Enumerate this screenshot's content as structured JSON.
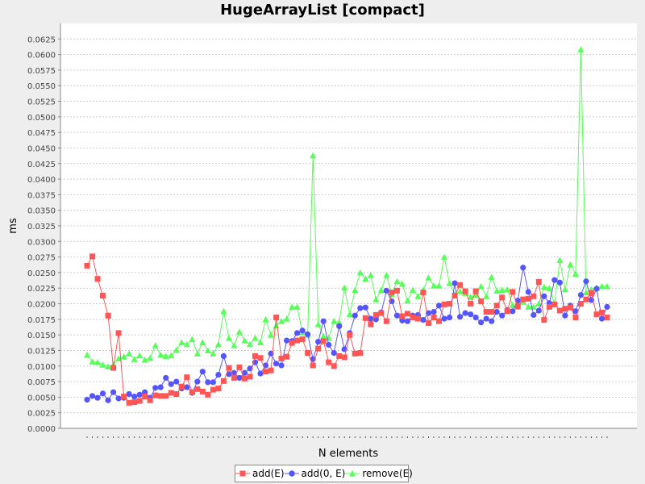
{
  "chart_data": {
    "type": "line",
    "title": "HugeArrayList [compact]",
    "xlabel": "N elements",
    "ylabel": "ms",
    "ylim": [
      0,
      0.065
    ],
    "yticks": [
      "0.0000",
      "0.0025",
      "0.0050",
      "0.0075",
      "0.0100",
      "0.0125",
      "0.0150",
      "0.0175",
      "0.0200",
      "0.0225",
      "0.0250",
      "0.0275",
      "0.0300",
      "0.0325",
      "0.0350",
      "0.0375",
      "0.0400",
      "0.0425",
      "0.0450",
      "0.0475",
      "0.0500",
      "0.0525",
      "0.0550",
      "0.0575",
      "0.0600",
      "0.0625"
    ],
    "grid": true,
    "legend_position": "bottom",
    "x_count": 100,
    "series": [
      {
        "name": "add(E)",
        "color": "#ff5555",
        "marker": "square",
        "values": [
          0.0261,
          0.0276,
          0.024,
          0.0213,
          0.0181,
          0.0097,
          0.0153,
          0.0051,
          0.0041,
          0.0042,
          0.0044,
          0.0051,
          0.0045,
          0.0053,
          0.0052,
          0.0052,
          0.0057,
          0.0055,
          0.0067,
          0.0082,
          0.0058,
          0.0063,
          0.0059,
          0.0054,
          0.0062,
          0.0064,
          0.0076,
          0.0097,
          0.0081,
          0.0098,
          0.008,
          0.0083,
          0.0116,
          0.0113,
          0.0091,
          0.0093,
          0.0178,
          0.0112,
          0.0115,
          0.0137,
          0.0141,
          0.0143,
          0.0121,
          0.0101,
          0.0128,
          0.014,
          0.0106,
          0.01,
          0.0116,
          0.0114,
          0.015,
          0.012,
          0.0121,
          0.0177,
          0.0167,
          0.0182,
          0.0185,
          0.0172,
          0.0218,
          0.0221,
          0.018,
          0.0184,
          0.0178,
          0.0176,
          0.0218,
          0.0169,
          0.0178,
          0.0172,
          0.0199,
          0.02,
          0.0213,
          0.023,
          0.022,
          0.02,
          0.022,
          0.0204,
          0.0187,
          0.0187,
          0.0197,
          0.021,
          0.0188,
          0.0219,
          0.0196,
          0.0207,
          0.0208,
          0.0212,
          0.0235,
          0.0174,
          0.0195,
          0.0199,
          0.0189,
          0.0192,
          0.0194,
          0.0178,
          0.02,
          0.0207,
          0.0217,
          0.0183,
          0.0186,
          0.0178
        ]
      },
      {
        "name": "add(0, E)",
        "color": "#5555ff",
        "marker": "circle",
        "values": [
          0.0046,
          0.0052,
          0.0049,
          0.0056,
          0.0045,
          0.0058,
          0.0048,
          0.0049,
          0.0055,
          0.0051,
          0.0054,
          0.0058,
          0.0049,
          0.0065,
          0.0066,
          0.0081,
          0.0071,
          0.0075,
          0.0064,
          0.0066,
          0.0057,
          0.0075,
          0.0091,
          0.0074,
          0.0074,
          0.0086,
          0.0116,
          0.0087,
          0.0089,
          0.0081,
          0.0089,
          0.0096,
          0.0106,
          0.0088,
          0.0101,
          0.012,
          0.0104,
          0.0101,
          0.0141,
          0.014,
          0.0153,
          0.0157,
          0.0151,
          0.0111,
          0.0139,
          0.0172,
          0.0134,
          0.0121,
          0.0164,
          0.0127,
          0.0153,
          0.0181,
          0.0193,
          0.0194,
          0.0176,
          0.0175,
          0.0186,
          0.0221,
          0.0204,
          0.0181,
          0.0173,
          0.0172,
          0.0181,
          0.0182,
          0.0174,
          0.0185,
          0.0187,
          0.0197,
          0.0176,
          0.0178,
          0.0233,
          0.0179,
          0.0185,
          0.0183,
          0.0178,
          0.017,
          0.0176,
          0.0172,
          0.0187,
          0.0181,
          0.019,
          0.0188,
          0.0205,
          0.0258,
          0.0219,
          0.0182,
          0.0189,
          0.0212,
          0.0201,
          0.0238,
          0.0234,
          0.0181,
          0.0197,
          0.0188,
          0.0214,
          0.0236,
          0.0206,
          0.0224,
          0.0176,
          0.0195
        ]
      },
      {
        "name": "remove(E)",
        "color": "#55ff55",
        "marker": "triangle",
        "values": [
          0.0118,
          0.0107,
          0.0106,
          0.0102,
          0.0099,
          0.0102,
          0.0112,
          0.0115,
          0.012,
          0.0111,
          0.0117,
          0.011,
          0.0113,
          0.0133,
          0.0118,
          0.0116,
          0.0117,
          0.0126,
          0.0138,
          0.0135,
          0.0143,
          0.012,
          0.0138,
          0.0125,
          0.012,
          0.0135,
          0.0188,
          0.0145,
          0.0133,
          0.0155,
          0.0141,
          0.0135,
          0.0145,
          0.0138,
          0.0175,
          0.015,
          0.0165,
          0.0172,
          0.0176,
          0.0195,
          0.0195,
          0.0154,
          0.015,
          0.0438,
          0.0167,
          0.0148,
          0.0145,
          0.0172,
          0.017,
          0.0226,
          0.0183,
          0.0222,
          0.025,
          0.024,
          0.0246,
          0.0207,
          0.0222,
          0.0246,
          0.0215,
          0.0236,
          0.0232,
          0.0205,
          0.0222,
          0.0212,
          0.0222,
          0.0242,
          0.0229,
          0.0229,
          0.0275,
          0.0233,
          0.0215,
          0.022,
          0.0217,
          0.0211,
          0.0214,
          0.0228,
          0.0212,
          0.0243,
          0.0221,
          0.0222,
          0.0223,
          0.0198,
          0.0195,
          0.0203,
          0.0195,
          0.0195,
          0.02,
          0.0227,
          0.0225,
          0.02,
          0.027,
          0.0223,
          0.0263,
          0.0248,
          0.0608,
          0.0218,
          0.0223,
          0.0226,
          0.0228,
          0.0228
        ]
      }
    ]
  }
}
